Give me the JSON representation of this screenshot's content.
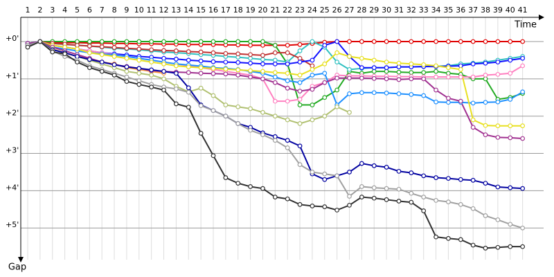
{
  "chart_data": {
    "type": "line",
    "xlabel": "Time",
    "ylabel": "Gap",
    "x": [
      1,
      2,
      3,
      4,
      5,
      6,
      7,
      8,
      9,
      10,
      11,
      12,
      13,
      14,
      15,
      16,
      17,
      18,
      19,
      20,
      21,
      22,
      23,
      24,
      25,
      26,
      27,
      28,
      29,
      30,
      31,
      32,
      33,
      34,
      35,
      36,
      37,
      38,
      39,
      40,
      41
    ],
    "xlim": [
      0.44,
      42.7
    ],
    "ylim": [
      -0.65,
      5.85
    ],
    "yticks": [
      {
        "value": 0,
        "label": "+0'"
      },
      {
        "value": 1,
        "label": "+1'"
      },
      {
        "value": 2,
        "label": "+2'"
      },
      {
        "value": 3,
        "label": "+3'"
      },
      {
        "value": 4,
        "label": "+4'"
      },
      {
        "value": 5,
        "label": "+5'"
      }
    ],
    "grid": true,
    "series": [
      {
        "color": "#e00000",
        "values": [
          0.05,
          0,
          0.02,
          0.03,
          0.03,
          0.04,
          0.04,
          0.05,
          0.05,
          0.06,
          0.06,
          0.07,
          0.07,
          0.08,
          0.08,
          0.08,
          0.09,
          0.09,
          0.1,
          0.1,
          0.1,
          0.1,
          0.08,
          0.05,
          0.02,
          0,
          0,
          0,
          0,
          0,
          0,
          0,
          0,
          0,
          0,
          0,
          0,
          0,
          0,
          0,
          0
        ]
      },
      {
        "color": "#22aa22",
        "values": [
          0.05,
          0,
          0,
          0,
          0,
          0,
          0,
          0,
          0,
          0,
          0,
          0,
          0,
          0,
          0,
          0,
          0,
          0,
          0,
          0,
          0.1,
          0.6,
          1.7,
          1.7,
          1.5,
          1.3,
          0.8,
          0.85,
          0.8,
          0.8,
          0.82,
          0.83,
          0.83,
          0.8,
          0.85,
          0.88,
          1.0,
          1.0,
          1.55,
          1.5,
          1.39
        ]
      },
      {
        "color": "#30c0c0",
        "values": [
          0.05,
          0,
          0.05,
          0.08,
          0.1,
          0.12,
          0.15,
          0.18,
          0.2,
          0.22,
          0.25,
          0.28,
          0.3,
          0.32,
          0.35,
          0.37,
          0.4,
          0.42,
          0.45,
          0.48,
          0.5,
          0.55,
          0.25,
          0,
          0.15,
          0.55,
          0.75,
          0.72,
          0.7,
          0.7,
          0.68,
          0.68,
          0.67,
          0.66,
          0.65,
          0.6,
          0.58,
          0.55,
          0.5,
          0.45,
          0.4
        ]
      },
      {
        "color": "#c03030",
        "values": [
          0.05,
          0,
          0.05,
          0.07,
          0.1,
          0.12,
          0.14,
          0.16,
          0.18,
          0.2,
          0.22,
          0.24,
          0.25,
          0.27,
          0.28,
          0.3,
          0.32,
          0.33,
          0.35,
          0.37,
          0.3,
          0.3,
          0.45,
          0.65,
          null,
          null,
          null,
          null,
          null,
          null,
          null,
          null,
          null,
          null,
          null,
          null,
          null,
          null,
          null,
          null,
          null
        ]
      },
      {
        "color": "#ffa040",
        "values": [
          0.1,
          0,
          0.2,
          0.3,
          0.4,
          0.45,
          0.55,
          0.6,
          0.7,
          0.75,
          0.8,
          0.85,
          null,
          null,
          null,
          null,
          null,
          null,
          null,
          null,
          null,
          null,
          null,
          null,
          null,
          null,
          null,
          null,
          null,
          null,
          null,
          null,
          null,
          null,
          null,
          null,
          null,
          null,
          null,
          null,
          null
        ]
      },
      {
        "color": "#1010ff",
        "values": [
          0.05,
          0,
          0.1,
          0.15,
          0.2,
          0.25,
          0.3,
          0.33,
          0.36,
          0.4,
          0.42,
          0.45,
          0.47,
          0.5,
          0.52,
          0.54,
          0.55,
          0.56,
          0.58,
          0.6,
          0.6,
          0.6,
          0.55,
          0.5,
          0.1,
          0,
          0.4,
          0.7,
          0.7,
          0.7,
          0.68,
          0.68,
          0.67,
          0.67,
          0.66,
          0.65,
          0.6,
          0.58,
          0.55,
          0.5,
          0.45
        ]
      },
      {
        "color": "#ff80c0",
        "values": [
          0.05,
          0,
          0.1,
          0.15,
          0.2,
          0.25,
          0.3,
          0.35,
          0.4,
          0.45,
          0.5,
          0.55,
          0.6,
          0.65,
          0.7,
          0.75,
          0.8,
          0.85,
          0.9,
          1.0,
          1.6,
          1.6,
          1.55,
          1.2,
          1.1,
          0.9,
          0.92,
          0.92,
          0.93,
          0.93,
          0.94,
          0.94,
          0.95,
          0.95,
          0.95,
          0.95,
          0.95,
          0.9,
          0.88,
          0.85,
          0.65
        ]
      },
      {
        "color": "#1e90ff",
        "values": [
          0.05,
          0,
          0.15,
          0.2,
          0.25,
          0.3,
          0.33,
          0.36,
          0.4,
          0.45,
          0.5,
          0.55,
          0.6,
          0.63,
          0.66,
          0.7,
          0.72,
          0.75,
          0.8,
          0.85,
          0.95,
          1.05,
          1.1,
          0.9,
          0.85,
          1.7,
          1.4,
          1.37,
          1.37,
          1.38,
          1.4,
          1.42,
          1.45,
          1.62,
          1.63,
          1.63,
          1.65,
          1.63,
          1.62,
          1.55,
          1.35
        ]
      },
      {
        "color": "#e8e020",
        "values": [
          0.1,
          0,
          0.1,
          0.15,
          0.2,
          0.3,
          0.35,
          0.4,
          0.45,
          0.5,
          0.55,
          0.6,
          0.65,
          0.68,
          0.7,
          0.72,
          0.74,
          0.76,
          0.78,
          0.8,
          0.83,
          0.85,
          0.9,
          0.75,
          0.6,
          0.3,
          0.4,
          0.45,
          0.5,
          0.55,
          0.58,
          0.6,
          0.62,
          0.65,
          0.7,
          0.75,
          2.1,
          2.25,
          2.26,
          2.26,
          2.26
        ]
      },
      {
        "color": "#a03090",
        "values": [
          0.05,
          0,
          0.15,
          0.25,
          0.35,
          0.45,
          0.55,
          0.62,
          0.67,
          0.72,
          0.78,
          0.8,
          0.82,
          0.83,
          0.85,
          0.86,
          0.87,
          0.9,
          0.95,
          1.0,
          1.1,
          1.25,
          1.33,
          1.28,
          1.1,
          0.98,
          0.98,
          0.98,
          0.99,
          1.0,
          1.02,
          1.0,
          1.0,
          1.3,
          1.52,
          1.6,
          2.3,
          2.5,
          2.57,
          2.58,
          2.6
        ]
      },
      {
        "color": "#b0c070",
        "values": [
          0.1,
          0,
          0.2,
          0.3,
          0.4,
          0.5,
          0.6,
          0.7,
          0.8,
          0.85,
          0.9,
          1.0,
          1.2,
          1.35,
          1.25,
          1.45,
          1.7,
          1.75,
          1.8,
          1.9,
          2.0,
          2.1,
          2.2,
          2.1,
          2.0,
          1.75,
          1.9,
          null,
          null,
          null,
          null,
          null,
          null,
          null,
          null,
          null,
          null,
          null,
          null,
          null,
          null
        ]
      },
      {
        "color": "#0000a0",
        "values": [
          0.1,
          0,
          0.22,
          0.3,
          0.4,
          0.48,
          0.55,
          0.62,
          0.68,
          0.72,
          0.76,
          0.8,
          0.85,
          1.24,
          1.7,
          1.85,
          2.0,
          2.2,
          2.3,
          2.45,
          2.55,
          2.65,
          2.8,
          3.55,
          3.7,
          3.6,
          3.5,
          3.27,
          3.33,
          3.37,
          3.48,
          3.52,
          3.6,
          3.65,
          3.67,
          3.7,
          3.72,
          3.8,
          3.9,
          3.92,
          3.94
        ]
      },
      {
        "color": "#a0a0a0",
        "values": [
          0.1,
          0,
          0.25,
          0.4,
          0.5,
          0.65,
          0.75,
          0.85,
          0.95,
          1.05,
          1.15,
          1.22,
          1.27,
          1.36,
          1.72,
          1.85,
          2.0,
          2.2,
          2.38,
          2.5,
          2.65,
          2.85,
          3.3,
          3.5,
          3.55,
          3.6,
          4.15,
          3.89,
          3.92,
          3.94,
          3.96,
          4.07,
          4.17,
          4.26,
          4.3,
          4.37,
          4.48,
          4.67,
          4.78,
          4.9,
          5.0
        ]
      },
      {
        "color": "#303030",
        "values": [
          0.15,
          0,
          0.28,
          0.33,
          0.55,
          0.7,
          0.8,
          0.9,
          1.07,
          1.15,
          1.22,
          1.3,
          1.67,
          1.76,
          2.46,
          3.06,
          3.65,
          3.8,
          3.89,
          3.94,
          4.17,
          4.22,
          4.37,
          4.41,
          4.43,
          4.52,
          4.39,
          4.17,
          4.2,
          4.24,
          4.28,
          4.31,
          4.54,
          5.24,
          5.28,
          5.31,
          5.46,
          5.54,
          5.52,
          5.5,
          5.5
        ]
      }
    ]
  }
}
